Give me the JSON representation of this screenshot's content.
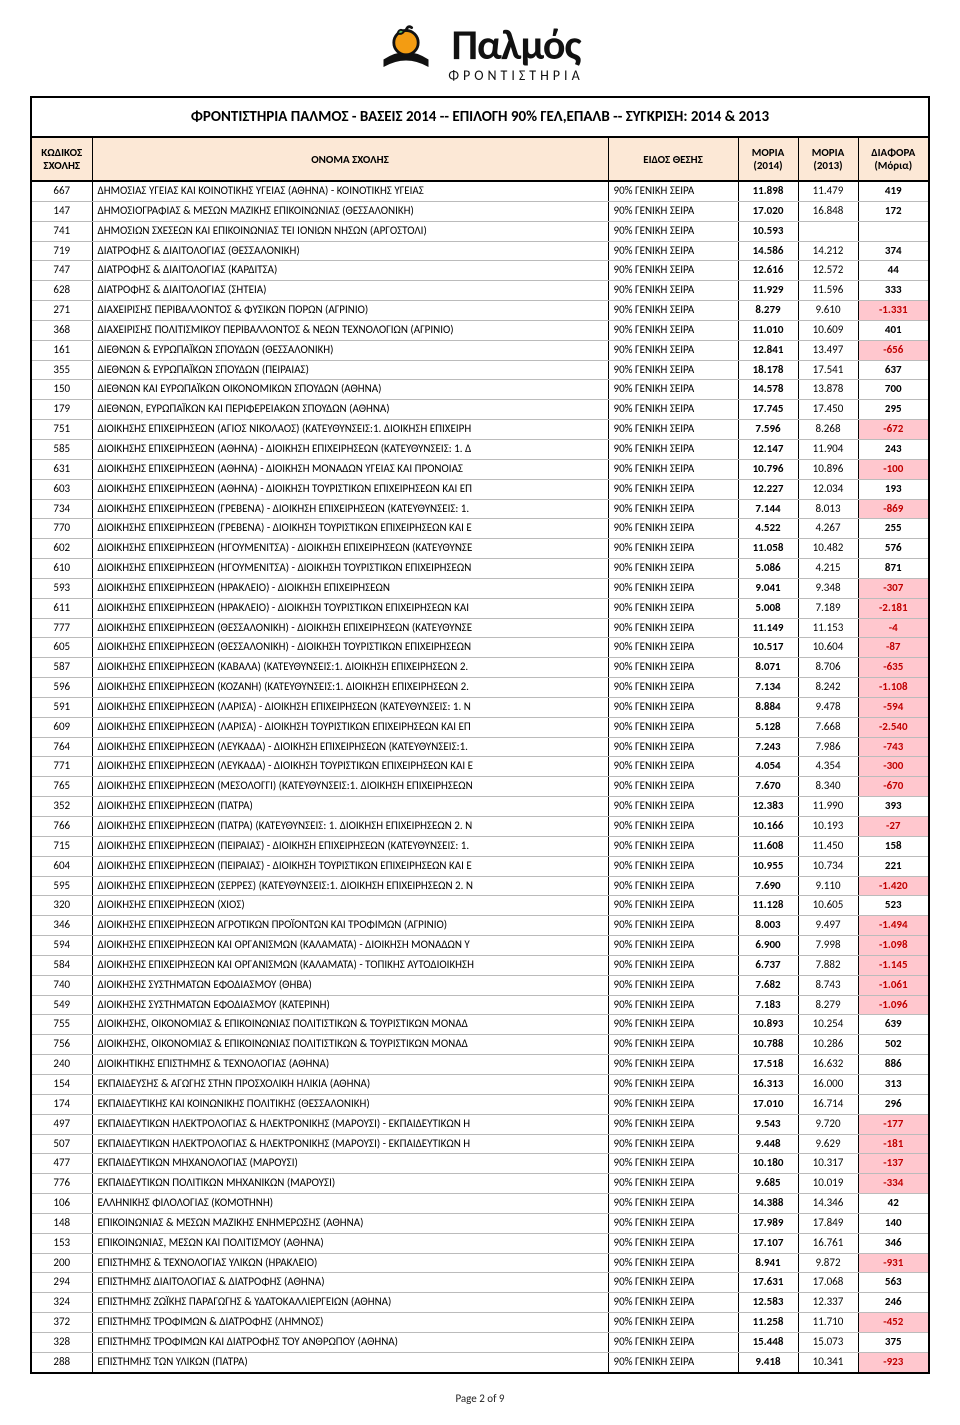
{
  "logo": {
    "brand": "Παλμός",
    "subtitle": "ΦΡΟΝΤΙΣΤΗΡΙΑ"
  },
  "title": "ΦΡΟΝΤΙΣΤΗΡΙΑ ΠΑΛΜΟΣ - ΒΑΣΕΙΣ 2014 -- ΕΠΙΛΟΓΗ 90% ΓΕΛ,ΕΠΑΛΒ -- ΣΥΓΚΡΙΣΗ: 2014 & 2013",
  "columns": {
    "code": "ΚΩΔΙΚΟΣ ΣΧΟΛΗΣ",
    "name": "ΟΝΟΜΑ ΣΧΟΛΗΣ",
    "type": "ΕΙΔΟΣ ΘΕΣΗΣ",
    "moria2014": "ΜΟΡΙΑ (2014)",
    "moria2013": "ΜΟΡΙΑ (2013)",
    "diff": "ΔΙΑΦΟΡΑ (Μόρια)"
  },
  "type_text": "90% ΓΕΝΙΚΗ ΣΕΙΡΑ",
  "footer": "Page 2 of 9",
  "colors": {
    "header_bg": "#fce8d6",
    "neg_bg": "#ffc7ce",
    "neg_fg": "#c00000"
  },
  "rows": [
    {
      "code": "667",
      "name": "ΔΗΜΟΣΙΑΣ ΥΓΕΙΑΣ ΚΑΙ ΚΟΙΝΟΤΙΚΗΣ ΥΓΕΙΑΣ (ΑΘΗΝΑ) - ΚΟΙΝΟΤΙΚΗΣ ΥΓΕΙΑΣ",
      "m14": "11.898",
      "m13": "11.479",
      "diff": "419"
    },
    {
      "code": "147",
      "name": "ΔΗΜΟΣΙΟΓΡΑΦΙΑΣ & ΜΕΣΩΝ ΜΑΖΙΚΗΣ ΕΠΙΚΟΙΝΩΝΙΑΣ (ΘΕΣΣΑΛΟΝΙΚΗ)",
      "m14": "17.020",
      "m13": "16.848",
      "diff": "172"
    },
    {
      "code": "741",
      "name": "ΔΗΜΟΣΙΩΝ ΣΧΕΣΕΩΝ ΚΑΙ ΕΠΙΚΟΙΝΩΝΙΑΣ ΤΕΙ ΙΟΝΙΩΝ ΝΗΣΩΝ (ΑΡΓΟΣΤΟΛΙ)",
      "m14": "10.593",
      "m13": "",
      "diff": ""
    },
    {
      "code": "719",
      "name": "ΔΙΑΤΡΟΦΗΣ & ΔΙΑΙΤΟΛΟΓΙΑΣ (ΘΕΣΣΑΛΟΝΙΚΗ)",
      "m14": "14.586",
      "m13": "14.212",
      "diff": "374"
    },
    {
      "code": "747",
      "name": "ΔΙΑΤΡΟΦΗΣ & ΔΙΑΙΤΟΛΟΓΙΑΣ (ΚΑΡΔΙΤΣΑ)",
      "m14": "12.616",
      "m13": "12.572",
      "diff": "44"
    },
    {
      "code": "628",
      "name": "ΔΙΑΤΡΟΦΗΣ & ΔΙΑΙΤΟΛΟΓΙΑΣ (ΣΗΤΕΙΑ)",
      "m14": "11.929",
      "m13": "11.596",
      "diff": "333"
    },
    {
      "code": "271",
      "name": "ΔΙΑΧΕΙΡΙΣΗΣ ΠΕΡΙΒΑΛΛΟΝΤΟΣ & ΦΥΣΙΚΩΝ ΠΟΡΩΝ (ΑΓΡΙΝΙΟ)",
      "m14": "8.279",
      "m13": "9.610",
      "diff": "-1.331"
    },
    {
      "code": "368",
      "name": "ΔΙΑΧΕΙΡΙΣΗΣ ΠΟΛΙΤΙΣΜΙΚΟΥ ΠΕΡΙΒΑΛΛΟΝΤΟΣ & ΝΕΩΝ ΤΕΧΝΟΛΟΓΙΩΝ (ΑΓΡΙΝΙΟ)",
      "m14": "11.010",
      "m13": "10.609",
      "diff": "401"
    },
    {
      "code": "161",
      "name": "ΔΙΕΘΝΩΝ & ΕΥΡΩΠΑΪΚΩΝ ΣΠΟΥΔΩΝ (ΘΕΣΣΑΛΟΝΙΚΗ)",
      "m14": "12.841",
      "m13": "13.497",
      "diff": "-656"
    },
    {
      "code": "355",
      "name": "ΔΙΕΘΝΩΝ & ΕΥΡΩΠΑΪΚΩΝ ΣΠΟΥΔΩΝ (ΠΕΙΡΑΙΑΣ)",
      "m14": "18.178",
      "m13": "17.541",
      "diff": "637"
    },
    {
      "code": "150",
      "name": "ΔΙΕΘΝΩΝ ΚΑΙ ΕΥΡΩΠΑΪΚΩΝ ΟΙΚΟΝΟΜΙΚΩΝ ΣΠΟΥΔΩΝ (ΑΘΗΝΑ)",
      "m14": "14.578",
      "m13": "13.878",
      "diff": "700"
    },
    {
      "code": "179",
      "name": "ΔΙΕΘΝΩΝ, ΕΥΡΩΠΑΪΚΩΝ ΚΑΙ ΠΕΡΙΦΕΡΕΙΑΚΩΝ ΣΠΟΥΔΩΝ (ΑΘΗΝΑ)",
      "m14": "17.745",
      "m13": "17.450",
      "diff": "295"
    },
    {
      "code": "751",
      "name": "ΔΙΟΙΚΗΣΗΣ ΕΠΙΧΕΙΡΗΣΕΩΝ (ΑΓΙΟΣ ΝΙΚΟΛΑΟΣ) (ΚΑΤΕΥΘΥΝΣΕΙΣ:1. ΔΙΟΙΚΗΣΗ ΕΠΙΧΕΙΡΗ",
      "m14": "7.596",
      "m13": "8.268",
      "diff": "-672"
    },
    {
      "code": "585",
      "name": "ΔΙΟΙΚΗΣΗΣ ΕΠΙΧΕΙΡΗΣΕΩΝ (ΑΘΗΝΑ) - ΔΙΟΙΚΗΣΗ ΕΠΙΧΕΙΡΗΣΕΩΝ (ΚΑΤΕΥΘΥΝΣΕΙΣ: 1. Δ",
      "m14": "12.147",
      "m13": "11.904",
      "diff": "243"
    },
    {
      "code": "631",
      "name": "ΔΙΟΙΚΗΣΗΣ ΕΠΙΧΕΙΡΗΣΕΩΝ (ΑΘΗΝΑ) - ΔΙΟΙΚΗΣΗ ΜΟΝΑΔΩΝ ΥΓΕΙΑΣ ΚΑΙ ΠΡΟΝΟΙΑΣ",
      "m14": "10.796",
      "m13": "10.896",
      "diff": "-100"
    },
    {
      "code": "603",
      "name": "ΔΙΟΙΚΗΣΗΣ ΕΠΙΧΕΙΡΗΣΕΩΝ (ΑΘΗΝΑ) - ΔΙΟΙΚΗΣΗ ΤΟΥΡΙΣΤΙΚΩΝ ΕΠΙΧΕΙΡΗΣΕΩΝ ΚΑΙ ΕΠ",
      "m14": "12.227",
      "m13": "12.034",
      "diff": "193"
    },
    {
      "code": "734",
      "name": "ΔΙΟΙΚΗΣΗΣ ΕΠΙΧΕΙΡΗΣΕΩΝ (ΓΡΕΒΕΝΑ) - ΔΙΟΙΚΗΣΗ ΕΠΙΧΕΙΡΗΣΕΩΝ (ΚΑΤΕΥΘΥΝΣΕΙΣ: 1.",
      "m14": "7.144",
      "m13": "8.013",
      "diff": "-869"
    },
    {
      "code": "770",
      "name": "ΔΙΟΙΚΗΣΗΣ ΕΠΙΧΕΙΡΗΣΕΩΝ (ΓΡΕΒΕΝΑ) - ΔΙΟΙΚΗΣΗ ΤΟΥΡΙΣΤΙΚΩΝ ΕΠΙΧΕΙΡΗΣΕΩΝ ΚΑΙ Ε",
      "m14": "4.522",
      "m13": "4.267",
      "diff": "255"
    },
    {
      "code": "602",
      "name": "ΔΙΟΙΚΗΣΗΣ ΕΠΙΧΕΙΡΗΣΕΩΝ (ΗΓΟΥΜΕΝΙΤΣΑ) - ΔΙΟΙΚΗΣΗ ΕΠΙΧΕΙΡΗΣΕΩΝ (ΚΑΤΕΥΘΥΝΣΕ",
      "m14": "11.058",
      "m13": "10.482",
      "diff": "576"
    },
    {
      "code": "610",
      "name": "ΔΙΟΙΚΗΣΗΣ ΕΠΙΧΕΙΡΗΣΕΩΝ (ΗΓΟΥΜΕΝΙΤΣΑ) - ΔΙΟΙΚΗΣΗ ΤΟΥΡΙΣΤΙΚΩΝ ΕΠΙΧΕΙΡΗΣΕΩΝ",
      "m14": "5.086",
      "m13": "4.215",
      "diff": "871"
    },
    {
      "code": "593",
      "name": "ΔΙΟΙΚΗΣΗΣ ΕΠΙΧΕΙΡΗΣΕΩΝ (ΗΡΑΚΛΕΙΟ) - ΔΙΟΙΚΗΣΗ ΕΠΙΧΕΙΡΗΣΕΩΝ",
      "m14": "9.041",
      "m13": "9.348",
      "diff": "-307"
    },
    {
      "code": "611",
      "name": "ΔΙΟΙΚΗΣΗΣ ΕΠΙΧΕΙΡΗΣΕΩΝ (ΗΡΑΚΛΕΙΟ) - ΔΙΟΙΚΗΣΗ ΤΟΥΡΙΣΤΙΚΩΝ ΕΠΙΧΕΙΡΗΣΕΩΝ ΚΑΙ",
      "m14": "5.008",
      "m13": "7.189",
      "diff": "-2.181"
    },
    {
      "code": "777",
      "name": "ΔΙΟΙΚΗΣΗΣ ΕΠΙΧΕΙΡΗΣΕΩΝ (ΘΕΣΣΑΛΟΝΙΚΗ) - ΔΙΟΙΚΗΣΗ ΕΠΙΧΕΙΡΗΣΕΩΝ (ΚΑΤΕΥΘΥΝΣΕ",
      "m14": "11.149",
      "m13": "11.153",
      "diff": "-4"
    },
    {
      "code": "605",
      "name": "ΔΙΟΙΚΗΣΗΣ ΕΠΙΧΕΙΡΗΣΕΩΝ (ΘΕΣΣΑΛΟΝΙΚΗ) - ΔΙΟΙΚΗΣΗ ΤΟΥΡΙΣΤΙΚΩΝ ΕΠΙΧΕΙΡΗΣΕΩΝ",
      "m14": "10.517",
      "m13": "10.604",
      "diff": "-87"
    },
    {
      "code": "587",
      "name": "ΔΙΟΙΚΗΣΗΣ ΕΠΙΧΕΙΡΗΣΕΩΝ (ΚΑΒΑΛΑ) (ΚΑΤΕΥΘΥΝΣΕΙΣ:1. ΔΙΟΙΚΗΣΗ ΕΠΙΧΕΙΡΗΣΕΩΝ 2.",
      "m14": "8.071",
      "m13": "8.706",
      "diff": "-635"
    },
    {
      "code": "596",
      "name": "ΔΙΟΙΚΗΣΗΣ ΕΠΙΧΕΙΡΗΣΕΩΝ (ΚΟΖΑΝΗ) (ΚΑΤΕΥΘΥΝΣΕΙΣ:1. ΔΙΟΙΚΗΣΗ ΕΠΙΧΕΙΡΗΣΕΩΝ 2.",
      "m14": "7.134",
      "m13": "8.242",
      "diff": "-1.108"
    },
    {
      "code": "591",
      "name": "ΔΙΟΙΚΗΣΗΣ ΕΠΙΧΕΙΡΗΣΕΩΝ (ΛΑΡΙΣΑ) - ΔΙΟΙΚΗΣΗ ΕΠΙΧΕΙΡΗΣΕΩΝ (ΚΑΤΕΥΘΥΝΣΕΙΣ: 1. Ν",
      "m14": "8.884",
      "m13": "9.478",
      "diff": "-594"
    },
    {
      "code": "609",
      "name": "ΔΙΟΙΚΗΣΗΣ ΕΠΙΧΕΙΡΗΣΕΩΝ (ΛΑΡΙΣΑ) - ΔΙΟΙΚΗΣΗ ΤΟΥΡΙΣΤΙΚΩΝ ΕΠΙΧΕΙΡΗΣΕΩΝ ΚΑΙ ΕΠ",
      "m14": "5.128",
      "m13": "7.668",
      "diff": "-2.540"
    },
    {
      "code": "764",
      "name": "ΔΙΟΙΚΗΣΗΣ ΕΠΙΧΕΙΡΗΣΕΩΝ (ΛΕΥΚΑΔΑ) - ΔΙΟΙΚΗΣΗ ΕΠΙΧΕΙΡΗΣΕΩΝ (ΚΑΤΕΥΘΥΝΣΕΙΣ:1.",
      "m14": "7.243",
      "m13": "7.986",
      "diff": "-743"
    },
    {
      "code": "771",
      "name": "ΔΙΟΙΚΗΣΗΣ ΕΠΙΧΕΙΡΗΣΕΩΝ (ΛΕΥΚΑΔΑ) - ΔΙΟΙΚΗΣΗ ΤΟΥΡΙΣΤΙΚΩΝ ΕΠΙΧΕΙΡΗΣΕΩΝ ΚΑΙ Ε",
      "m14": "4.054",
      "m13": "4.354",
      "diff": "-300"
    },
    {
      "code": "765",
      "name": "ΔΙΟΙΚΗΣΗΣ ΕΠΙΧΕΙΡΗΣΕΩΝ (ΜΕΣΟΛΟΓΓΙ) (ΚΑΤΕΥΘΥΝΣΕΙΣ:1. ΔΙΟΙΚΗΣΗ ΕΠΙΧΕΙΡΗΣΕΩΝ",
      "m14": "7.670",
      "m13": "8.340",
      "diff": "-670"
    },
    {
      "code": "352",
      "name": "ΔΙΟΙΚΗΣΗΣ ΕΠΙΧΕΙΡΗΣΕΩΝ (ΠΑΤΡΑ)",
      "m14": "12.383",
      "m13": "11.990",
      "diff": "393"
    },
    {
      "code": "766",
      "name": "ΔΙΟΙΚΗΣΗΣ ΕΠΙΧΕΙΡΗΣΕΩΝ (ΠΑΤΡΑ) (ΚΑΤΕΥΘΥΝΣΕΙΣ: 1. ΔΙΟΙΚΗΣΗ ΕΠΙΧΕΙΡΗΣΕΩΝ 2. Ν",
      "m14": "10.166",
      "m13": "10.193",
      "diff": "-27"
    },
    {
      "code": "715",
      "name": "ΔΙΟΙΚΗΣΗΣ ΕΠΙΧΕΙΡΗΣΕΩΝ (ΠΕΙΡΑΙΑΣ) - ΔΙΟΙΚΗΣΗ ΕΠΙΧΕΙΡΗΣΕΩΝ (ΚΑΤΕΥΘΥΝΣΕΙΣ: 1.",
      "m14": "11.608",
      "m13": "11.450",
      "diff": "158"
    },
    {
      "code": "604",
      "name": "ΔΙΟΙΚΗΣΗΣ ΕΠΙΧΕΙΡΗΣΕΩΝ (ΠΕΙΡΑΙΑΣ) - ΔΙΟΙΚΗΣΗ ΤΟΥΡΙΣΤΙΚΩΝ ΕΠΙΧΕΙΡΗΣΕΩΝ ΚΑΙ Ε",
      "m14": "10.955",
      "m13": "10.734",
      "diff": "221"
    },
    {
      "code": "595",
      "name": "ΔΙΟΙΚΗΣΗΣ ΕΠΙΧΕΙΡΗΣΕΩΝ (ΣΕΡΡΕΣ) (ΚΑΤΕΥΘΥΝΣΕΙΣ:1. ΔΙΟΙΚΗΣΗ ΕΠΙΧΕΙΡΗΣΕΩΝ 2. Ν",
      "m14": "7.690",
      "m13": "9.110",
      "diff": "-1.420"
    },
    {
      "code": "320",
      "name": "ΔΙΟΙΚΗΣΗΣ ΕΠΙΧΕΙΡΗΣΕΩΝ (ΧΙΟΣ)",
      "m14": "11.128",
      "m13": "10.605",
      "diff": "523"
    },
    {
      "code": "346",
      "name": "ΔΙΟΙΚΗΣΗΣ ΕΠΙΧΕΙΡΗΣΕΩΝ ΑΓΡΟΤΙΚΩΝ ΠΡΟΪΟΝΤΩΝ ΚΑΙ ΤΡΟΦΙΜΩΝ (ΑΓΡΙΝΙΟ)",
      "m14": "8.003",
      "m13": "9.497",
      "diff": "-1.494"
    },
    {
      "code": "594",
      "name": "ΔΙΟΙΚΗΣΗΣ ΕΠΙΧΕΙΡΗΣΕΩΝ ΚΑΙ ΟΡΓΑΝΙΣΜΩΝ (ΚΑΛΑΜΑΤΑ) - ΔΙΟΙΚΗΣΗ ΜΟΝΑΔΩΝ Υ",
      "m14": "6.900",
      "m13": "7.998",
      "diff": "-1.098"
    },
    {
      "code": "584",
      "name": "ΔΙΟΙΚΗΣΗΣ ΕΠΙΧΕΙΡΗΣΕΩΝ ΚΑΙ ΟΡΓΑΝΙΣΜΩΝ (ΚΑΛΑΜΑΤΑ) - ΤΟΠΙΚΗΣ ΑΥΤΟΔΙΟΙΚΗΣΗ",
      "m14": "6.737",
      "m13": "7.882",
      "diff": "-1.145"
    },
    {
      "code": "740",
      "name": "ΔΙΟΙΚΗΣΗΣ ΣΥΣΤΗΜΑΤΩΝ ΕΦΟΔΙΑΣΜΟΥ (ΘΗΒΑ)",
      "m14": "7.682",
      "m13": "8.743",
      "diff": "-1.061"
    },
    {
      "code": "549",
      "name": "ΔΙΟΙΚΗΣΗΣ ΣΥΣΤΗΜΑΤΩΝ ΕΦΟΔΙΑΣΜΟΥ (ΚΑΤΕΡΙΝΗ)",
      "m14": "7.183",
      "m13": "8.279",
      "diff": "-1.096"
    },
    {
      "code": "755",
      "name": "ΔΙΟΙΚΗΣΗΣ, ΟΙΚΟΝΟΜΙΑΣ & ΕΠΙΚΟΙΝΩΝΙΑΣ ΠΟΛΙΤΙΣΤΙΚΩΝ & ΤΟΥΡΙΣΤΙΚΩΝ ΜΟΝΑΔ",
      "m14": "10.893",
      "m13": "10.254",
      "diff": "639"
    },
    {
      "code": "756",
      "name": "ΔΙΟΙΚΗΣΗΣ, ΟΙΚΟΝΟΜΙΑΣ & ΕΠΙΚΟΙΝΩΝΙΑΣ ΠΟΛΙΤΙΣΤΙΚΩΝ & ΤΟΥΡΙΣΤΙΚΩΝ ΜΟΝΑΔ",
      "m14": "10.788",
      "m13": "10.286",
      "diff": "502"
    },
    {
      "code": "240",
      "name": "ΔΙΟΙΚΗΤΙΚΗΣ ΕΠΙΣΤΗΜΗΣ & ΤΕΧΝΟΛΟΓΙΑΣ (ΑΘΗΝΑ)",
      "m14": "17.518",
      "m13": "16.632",
      "diff": "886"
    },
    {
      "code": "154",
      "name": "ΕΚΠΑΙΔΕΥΣΗΣ & ΑΓΩΓΗΣ ΣΤΗΝ ΠΡΟΣΧΟΛΙΚΗ ΗΛΙΚΙΑ (ΑΘΗΝΑ)",
      "m14": "16.313",
      "m13": "16.000",
      "diff": "313"
    },
    {
      "code": "174",
      "name": "ΕΚΠΑΙΔΕΥΤΙΚΗΣ ΚΑΙ ΚΟΙΝΩΝΙΚΗΣ ΠΟΛΙΤΙΚΗΣ (ΘΕΣΣΑΛΟΝΙΚΗ)",
      "m14": "17.010",
      "m13": "16.714",
      "diff": "296"
    },
    {
      "code": "497",
      "name": "ΕΚΠΑΙΔΕΥΤΙΚΩΝ ΗΛΕΚΤΡΟΛΟΓΙΑΣ & ΗΛΕΚΤΡΟΝΙΚΗΣ (ΜΑΡΟΥΣΙ) - ΕΚΠΑΙΔΕΥΤΙΚΩΝ Η",
      "m14": "9.543",
      "m13": "9.720",
      "diff": "-177"
    },
    {
      "code": "507",
      "name": "ΕΚΠΑΙΔΕΥΤΙΚΩΝ ΗΛΕΚΤΡΟΛΟΓΙΑΣ & ΗΛΕΚΤΡΟΝΙΚΗΣ (ΜΑΡΟΥΣΙ) - ΕΚΠΑΙΔΕΥΤΙΚΩΝ Η",
      "m14": "9.448",
      "m13": "9.629",
      "diff": "-181"
    },
    {
      "code": "477",
      "name": "ΕΚΠΑΙΔΕΥΤΙΚΩΝ ΜΗΧΑΝΟΛΟΓΙΑΣ (ΜΑΡΟΥΣΙ)",
      "m14": "10.180",
      "m13": "10.317",
      "diff": "-137"
    },
    {
      "code": "776",
      "name": "ΕΚΠΑΙΔΕΥΤΙΚΩΝ ΠΟΛΙΤΙΚΩΝ ΜΗΧΑΝΙΚΩΝ (ΜΑΡΟΥΣΙ)",
      "m14": "9.685",
      "m13": "10.019",
      "diff": "-334"
    },
    {
      "code": "106",
      "name": "ΕΛΛΗΝΙΚΗΣ ΦΙΛΟΛΟΓΙΑΣ (ΚΟΜΟΤΗΝΗ)",
      "m14": "14.388",
      "m13": "14.346",
      "diff": "42"
    },
    {
      "code": "148",
      "name": "ΕΠΙΚΟΙΝΩΝΙΑΣ & ΜΕΣΩΝ ΜΑΖΙΚΗΣ ΕΝΗΜΕΡΩΣΗΣ (ΑΘΗΝΑ)",
      "m14": "17.989",
      "m13": "17.849",
      "diff": "140"
    },
    {
      "code": "153",
      "name": "ΕΠΙΚΟΙΝΩΝΙΑΣ, ΜΕΣΩΝ ΚΑΙ ΠΟΛΙΤΙΣΜΟΥ (ΑΘΗΝΑ)",
      "m14": "17.107",
      "m13": "16.761",
      "diff": "346"
    },
    {
      "code": "200",
      "name": "ΕΠΙΣΤΗΜΗΣ & ΤΕΧΝΟΛΟΓΙΑΣ ΥΛΙΚΩΝ (ΗΡΑΚΛΕΙΟ)",
      "m14": "8.941",
      "m13": "9.872",
      "diff": "-931"
    },
    {
      "code": "294",
      "name": "ΕΠΙΣΤΗΜΗΣ ΔΙΑΙΤΟΛΟΓΙΑΣ & ΔΙΑΤΡΟΦΗΣ (ΑΘΗΝΑ)",
      "m14": "17.631",
      "m13": "17.068",
      "diff": "563"
    },
    {
      "code": "324",
      "name": "ΕΠΙΣΤΗΜΗΣ ΖΩΪΚΗΣ ΠΑΡΑΓΩΓΗΣ & ΥΔΑΤΟΚΑΛΛΙΕΡΓΕΙΩΝ (ΑΘΗΝΑ)",
      "m14": "12.583",
      "m13": "12.337",
      "diff": "246"
    },
    {
      "code": "372",
      "name": "ΕΠΙΣΤΗΜΗΣ ΤΡΟΦΙΜΩΝ & ΔΙΑΤΡΟΦΗΣ (ΛΗΜΝΟΣ)",
      "m14": "11.258",
      "m13": "11.710",
      "diff": "-452"
    },
    {
      "code": "328",
      "name": "ΕΠΙΣΤΗΜΗΣ ΤΡΟΦΙΜΩΝ ΚΑΙ ΔΙΑΤΡΟΦΗΣ ΤΟΥ ΑΝΘΡΩΠΟΥ (ΑΘΗΝΑ)",
      "m14": "15.448",
      "m13": "15.073",
      "diff": "375"
    },
    {
      "code": "288",
      "name": "ΕΠΙΣΤΗΜΗΣ ΤΩΝ ΥΛΙΚΩΝ (ΠΑΤΡΑ)",
      "m14": "9.418",
      "m13": "10.341",
      "diff": "-923"
    }
  ]
}
